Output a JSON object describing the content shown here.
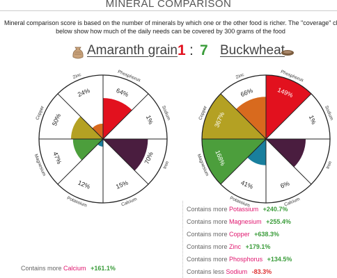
{
  "page": {
    "title": "MINERAL COMPARISON",
    "description_line1": "Mineral comparison score is based on the number of minerals by which one or the other food is richer. The \"coverage\" cl",
    "description_line2": "below show how much of the daily needs can be covered by 300 grams of the food"
  },
  "comparison": {
    "left_food": "Amaranth grain",
    "left_score": "1",
    "separator": ":",
    "right_score": "7",
    "right_food": "Buckwheat"
  },
  "chart_data": [
    {
      "type": "polar-area",
      "food": "Amaranth grain",
      "categories": [
        "Phosphorus",
        "Sodium",
        "Iron",
        "Calcium",
        "Potassium",
        "Magnesium",
        "Copper",
        "Zinc"
      ],
      "values": [
        64,
        1,
        70,
        15,
        12,
        47,
        50,
        24
      ],
      "labels": [
        "64%",
        "1%",
        "70%",
        "15%",
        "12%",
        "47%",
        "50%",
        "24%"
      ]
    },
    {
      "type": "polar-area",
      "food": "Buckwheat",
      "categories": [
        "Phosphorus",
        "Sodium",
        "Iron",
        "Calcium",
        "Potassium",
        "Magnesium",
        "Copper",
        "Zinc"
      ],
      "values": [
        149,
        1,
        62,
        6,
        41,
        168,
        367,
        66
      ],
      "labels": [
        "149%",
        "1%",
        "",
        "6%",
        "41%",
        "168%",
        "367%",
        "66%"
      ]
    }
  ],
  "colors": {
    "Phosphorus": "#e2111e",
    "Sodium": "#ffffff",
    "Iron": "#4a1d3f",
    "Calcium": "#ffffff",
    "Potassium": "#197f9d",
    "Magnesium": "#4c9e3c",
    "Copper": "#b4a123",
    "Zinc": "#d86a1e",
    "left_score": "#e2111e",
    "right_score": "#3a9c3a"
  },
  "left_list": {
    "rows": [
      {
        "prefix": "Contains more",
        "mineral": "Calcium",
        "value": "+161.1%"
      }
    ]
  },
  "right_list": {
    "rows": [
      {
        "prefix": "Contains more",
        "mineral": "Potassium",
        "value": "+240.7%"
      },
      {
        "prefix": "Contains more",
        "mineral": "Magnesium",
        "value": "+255.4%"
      },
      {
        "prefix": "Contains more",
        "mineral": "Copper",
        "value": "+638.3%"
      },
      {
        "prefix": "Contains more",
        "mineral": "Zinc",
        "value": "+179.1%"
      },
      {
        "prefix": "Contains more",
        "mineral": "Phosphorus",
        "value": "+134.5%"
      },
      {
        "prefix": "Contains less",
        "mineral": "Sodium",
        "value": "-83.3%"
      }
    ]
  },
  "icons": {
    "left_food": "grain-sack-icon",
    "right_food": "buckwheat-seed-icon"
  }
}
